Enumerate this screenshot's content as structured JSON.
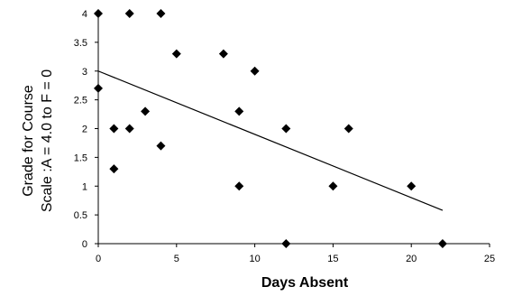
{
  "chart_data": {
    "type": "scatter",
    "title": "",
    "xlabel": "Days Absent",
    "ylabel_lines": [
      "Grade for Course",
      "Scale :A = 4.0 to F = 0"
    ],
    "xlim": [
      0,
      25
    ],
    "ylim": [
      0,
      4
    ],
    "x_ticks": [
      "0",
      "5",
      "10",
      "15",
      "20",
      "25"
    ],
    "y_ticks": [
      "0",
      "0.5",
      "1",
      "1.5",
      "2",
      "2.5",
      "3",
      "3.5",
      "4"
    ],
    "grid": false,
    "legend": "none",
    "marker_color": "#000000",
    "points": [
      {
        "x": 0,
        "y": 4
      },
      {
        "x": 0,
        "y": 2.7
      },
      {
        "x": 1,
        "y": 2
      },
      {
        "x": 1,
        "y": 1.3
      },
      {
        "x": 2,
        "y": 4
      },
      {
        "x": 2,
        "y": 2
      },
      {
        "x": 3,
        "y": 2.3
      },
      {
        "x": 4,
        "y": 4
      },
      {
        "x": 4,
        "y": 1.7
      },
      {
        "x": 5,
        "y": 3.3
      },
      {
        "x": 8,
        "y": 3.3
      },
      {
        "x": 9,
        "y": 2.3
      },
      {
        "x": 9,
        "y": 1
      },
      {
        "x": 10,
        "y": 3
      },
      {
        "x": 12,
        "y": 2
      },
      {
        "x": 12,
        "y": 0
      },
      {
        "x": 15,
        "y": 1
      },
      {
        "x": 16,
        "y": 2
      },
      {
        "x": 20,
        "y": 1
      },
      {
        "x": 22,
        "y": 0
      }
    ],
    "trendline": {
      "x": [
        0,
        22
      ],
      "y": [
        3.0,
        0.58
      ]
    }
  }
}
